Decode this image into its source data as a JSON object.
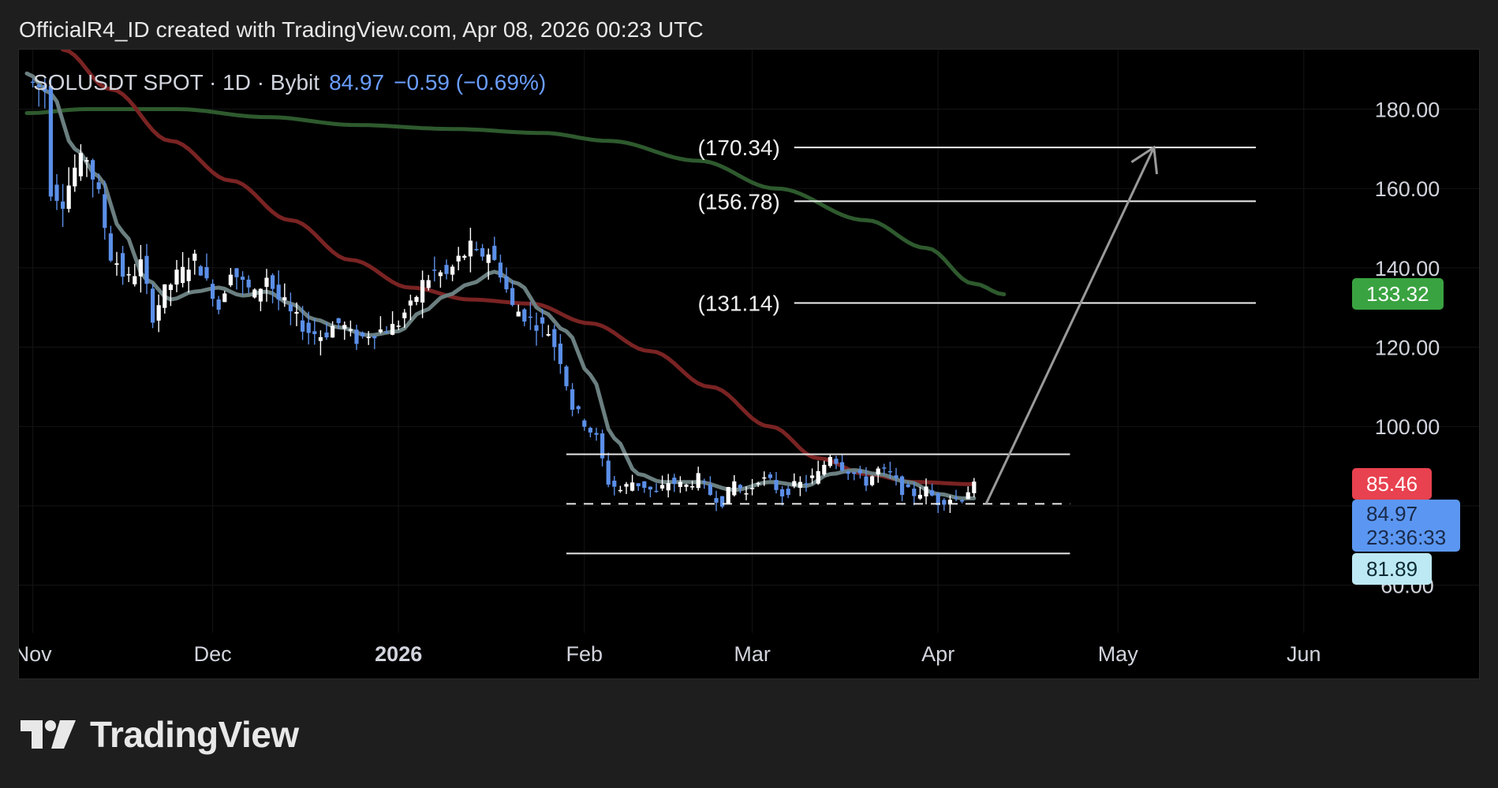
{
  "header": {
    "attribution": "OfficialR4_ID created with TradingView.com, Apr 08, 2026 00:23 UTC"
  },
  "legend": {
    "symbol": "SOLUSDT SPOT · 1D · Bybit",
    "price": "84.97",
    "change": "−0.59 (−0.69%)"
  },
  "brand": {
    "name": "TradingView"
  },
  "colors": {
    "candle_up": "#ffffff",
    "candle_down": "#5b8fe8",
    "ma_fast": "#6b7f80",
    "ma_mid": "#7a2323",
    "ma_slow": "#2e5a2e",
    "tag_red": "#e8414f",
    "tag_blue": "#5b97f2",
    "tag_green": "#3aa341",
    "tag_cyan": "#bde9f4"
  },
  "price_tags": {
    "ma_slow": "133.32",
    "ma_mid": "85.46",
    "last_price": "84.97",
    "countdown": "23:36:33",
    "ma_fast": "81.89"
  },
  "chart_data": {
    "type": "candlestick",
    "symbol": "SOLUSDT",
    "timeframe": "1D",
    "exchange": "Bybit",
    "y_axis": {
      "ticks": [
        60,
        80,
        100,
        120,
        140,
        160,
        180
      ],
      "tick_labels": [
        "60.00",
        "100.00",
        "120.00",
        "140.00",
        "160.00",
        "180.00"
      ],
      "range": [
        48,
        195
      ]
    },
    "x_axis": {
      "labels": [
        {
          "label": "Nov",
          "date": "2025-11-01",
          "bold": false
        },
        {
          "label": "Dec",
          "date": "2025-12-01",
          "bold": false
        },
        {
          "label": "2026",
          "date": "2026-01-01",
          "bold": true
        },
        {
          "label": "Feb",
          "date": "2026-02-01",
          "bold": false
        },
        {
          "label": "Mar",
          "date": "2026-03-01",
          "bold": false
        },
        {
          "label": "Apr",
          "date": "2026-04-01",
          "bold": false
        },
        {
          "label": "May",
          "date": "2026-05-01",
          "bold": false
        },
        {
          "label": "Jun",
          "date": "2026-06-01",
          "bold": false
        }
      ],
      "range": [
        "2025-10-31",
        "2026-06-15"
      ]
    },
    "price_path": [
      [
        "2025-10-31",
        187
      ],
      [
        "2025-11-03",
        185
      ],
      [
        "2025-11-04",
        160
      ],
      [
        "2025-11-06",
        157
      ],
      [
        "2025-11-08",
        165
      ],
      [
        "2025-11-10",
        168
      ],
      [
        "2025-11-12",
        158
      ],
      [
        "2025-11-14",
        143
      ],
      [
        "2025-11-17",
        137
      ],
      [
        "2025-11-19",
        141
      ],
      [
        "2025-11-21",
        128
      ],
      [
        "2025-11-23",
        134
      ],
      [
        "2025-11-25",
        138
      ],
      [
        "2025-11-28",
        142
      ],
      [
        "2025-12-01",
        134
      ],
      [
        "2025-12-02",
        130
      ],
      [
        "2025-12-04",
        140
      ],
      [
        "2025-12-06",
        136
      ],
      [
        "2025-12-08",
        133
      ],
      [
        "2025-12-10",
        138
      ],
      [
        "2025-12-12",
        132
      ],
      [
        "2025-12-15",
        127
      ],
      [
        "2025-12-17",
        124
      ],
      [
        "2025-12-19",
        123
      ],
      [
        "2025-12-22",
        126
      ],
      [
        "2025-12-25",
        122
      ],
      [
        "2025-12-28",
        124
      ],
      [
        "2025-12-31",
        125
      ],
      [
        "2026-01-03",
        130
      ],
      [
        "2026-01-05",
        136
      ],
      [
        "2026-01-07",
        139
      ],
      [
        "2026-01-09",
        138
      ],
      [
        "2026-01-11",
        142
      ],
      [
        "2026-01-13",
        145
      ],
      [
        "2026-01-14",
        143
      ],
      [
        "2026-01-16",
        144
      ],
      [
        "2026-01-18",
        139
      ],
      [
        "2026-01-20",
        130
      ],
      [
        "2026-01-22",
        128
      ],
      [
        "2026-01-24",
        126
      ],
      [
        "2026-01-26",
        124
      ],
      [
        "2026-01-28",
        117
      ],
      [
        "2026-01-30",
        105
      ],
      [
        "2026-02-01",
        101
      ],
      [
        "2026-02-03",
        97
      ],
      [
        "2026-02-05",
        86
      ],
      [
        "2026-02-07",
        84
      ],
      [
        "2026-02-09",
        86
      ],
      [
        "2026-02-11",
        85
      ],
      [
        "2026-02-13",
        83
      ],
      [
        "2026-02-15",
        86
      ],
      [
        "2026-02-18",
        85
      ],
      [
        "2026-02-20",
        87
      ],
      [
        "2026-02-22",
        83
      ],
      [
        "2026-02-24",
        81
      ],
      [
        "2026-02-26",
        86
      ],
      [
        "2026-02-28",
        83
      ],
      [
        "2026-03-02",
        87
      ],
      [
        "2026-03-04",
        86
      ],
      [
        "2026-03-06",
        83
      ],
      [
        "2026-03-08",
        85
      ],
      [
        "2026-03-10",
        86
      ],
      [
        "2026-03-12",
        88
      ],
      [
        "2026-03-14",
        93
      ],
      [
        "2026-03-16",
        90
      ],
      [
        "2026-03-18",
        88
      ],
      [
        "2026-03-20",
        86
      ],
      [
        "2026-03-22",
        89
      ],
      [
        "2026-03-24",
        88
      ],
      [
        "2026-03-26",
        84
      ],
      [
        "2026-03-28",
        83
      ],
      [
        "2026-03-30",
        84
      ],
      [
        "2026-04-01",
        81
      ],
      [
        "2026-04-03",
        82
      ],
      [
        "2026-04-05",
        82
      ],
      [
        "2026-04-06",
        84
      ],
      [
        "2026-04-07",
        84.97
      ]
    ],
    "ma_fast": [
      [
        "2025-10-31",
        189
      ],
      [
        "2025-11-04",
        184
      ],
      [
        "2025-11-08",
        170
      ],
      [
        "2025-11-12",
        163
      ],
      [
        "2025-11-16",
        149
      ],
      [
        "2025-11-20",
        137
      ],
      [
        "2025-11-24",
        132
      ],
      [
        "2025-11-28",
        134
      ],
      [
        "2025-12-02",
        135
      ],
      [
        "2025-12-06",
        133
      ],
      [
        "2025-12-10",
        134
      ],
      [
        "2025-12-14",
        131
      ],
      [
        "2025-12-18",
        127
      ],
      [
        "2025-12-22",
        125
      ],
      [
        "2025-12-27",
        123
      ],
      [
        "2026-01-01",
        124
      ],
      [
        "2026-01-05",
        129
      ],
      [
        "2026-01-09",
        133
      ],
      [
        "2026-01-13",
        136
      ],
      [
        "2026-01-17",
        139
      ],
      [
        "2026-01-21",
        136
      ],
      [
        "2026-01-25",
        129
      ],
      [
        "2026-01-29",
        124
      ],
      [
        "2026-02-02",
        113
      ],
      [
        "2026-02-06",
        97
      ],
      [
        "2026-02-10",
        88
      ],
      [
        "2026-02-14",
        86
      ],
      [
        "2026-02-20",
        86
      ],
      [
        "2026-02-26",
        84
      ],
      [
        "2026-03-04",
        86
      ],
      [
        "2026-03-10",
        85
      ],
      [
        "2026-03-14",
        88
      ],
      [
        "2026-03-18",
        89
      ],
      [
        "2026-03-22",
        88
      ],
      [
        "2026-03-27",
        86
      ],
      [
        "2026-04-01",
        83
      ],
      [
        "2026-04-05",
        81.89
      ],
      [
        "2026-04-07",
        81.89
      ]
    ],
    "ma_mid": [
      [
        "2025-11-06",
        195
      ],
      [
        "2025-11-14",
        185
      ],
      [
        "2025-11-24",
        172
      ],
      [
        "2025-12-04",
        162
      ],
      [
        "2025-12-14",
        152
      ],
      [
        "2025-12-24",
        142
      ],
      [
        "2026-01-03",
        135
      ],
      [
        "2026-01-13",
        132
      ],
      [
        "2026-01-23",
        131
      ],
      [
        "2026-02-02",
        126
      ],
      [
        "2026-02-12",
        119
      ],
      [
        "2026-02-22",
        110
      ],
      [
        "2026-03-04",
        100
      ],
      [
        "2026-03-12",
        92
      ],
      [
        "2026-03-20",
        88
      ],
      [
        "2026-03-28",
        86
      ],
      [
        "2026-04-07",
        85.46
      ]
    ],
    "ma_slow": [
      [
        "2025-10-31",
        179
      ],
      [
        "2025-11-10",
        180
      ],
      [
        "2025-11-25",
        180
      ],
      [
        "2025-12-10",
        178
      ],
      [
        "2025-12-25",
        176
      ],
      [
        "2026-01-10",
        175
      ],
      [
        "2026-01-25",
        174
      ],
      [
        "2026-02-05",
        172
      ],
      [
        "2026-02-20",
        167
      ],
      [
        "2026-03-05",
        160
      ],
      [
        "2026-03-20",
        152
      ],
      [
        "2026-03-30",
        145
      ],
      [
        "2026-04-07",
        136
      ],
      [
        "2026-04-12",
        133.32
      ]
    ],
    "range_box": {
      "top": 93,
      "mid": 80.5,
      "bottom": 68,
      "from": "2026-01-29",
      "to": "2026-04-23"
    },
    "target_levels": [
      {
        "label": "(170.34)",
        "value": 170.34
      },
      {
        "label": "(156.78)",
        "value": 156.78
      },
      {
        "label": "(131.14)",
        "value": 131.14
      }
    ],
    "target_lines_span": [
      "2026-03-08",
      "2026-05-24"
    ],
    "projection_arrow": {
      "from": [
        "2026-04-09",
        80.5
      ],
      "to": [
        "2026-05-07",
        170.34
      ]
    }
  }
}
